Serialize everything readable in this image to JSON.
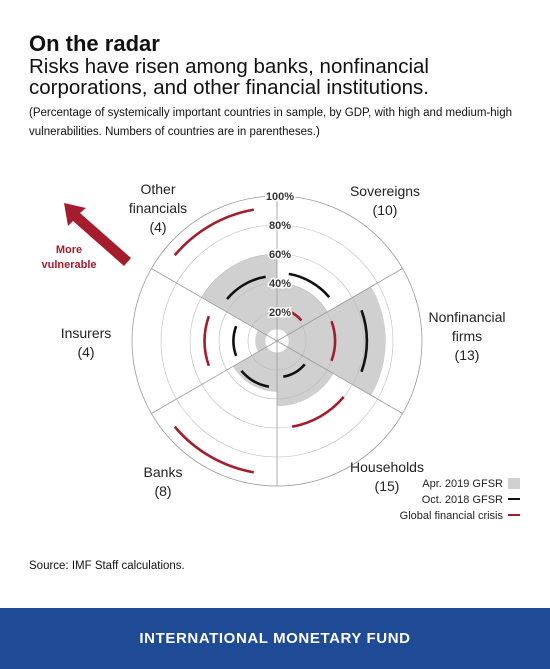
{
  "header": {
    "title": "On the radar",
    "subtitle": "Risks have risen among banks, nonfinancial corporations, and other financial institutions.",
    "note": "(Percentage of systemically important countries in sample, by GDP, with high and medium-high vulnerabilities. Numbers of countries are in parentheses.)"
  },
  "source": "Source: IMF Staff calculations.",
  "footer": {
    "org": "INTERNATIONAL MONETARY FUND"
  },
  "arrow": {
    "label_line1": "More",
    "label_line2": "vulnerable"
  },
  "colors": {
    "gray": "#d0d0d0",
    "black": "#111111",
    "red": "#a51d2d",
    "grid": "#999999",
    "footer": "#1f4a96"
  },
  "chart_data": {
    "type": "radar",
    "ticks": [
      "20%",
      "40%",
      "60%",
      "80%",
      "100%"
    ],
    "rlim": [
      0,
      100
    ],
    "categories": [
      {
        "line1": "Sovereigns",
        "line2": "(10)"
      },
      {
        "line1": "Nonfinancial",
        "line2": "firms",
        "line3": "(13)"
      },
      {
        "line1": "Households",
        "line2": "(15)"
      },
      {
        "line1": "Banks",
        "line2": "(8)"
      },
      {
        "line1": "Insurers",
        "line2": "(4)"
      },
      {
        "line1": "Other",
        "line2": "financials",
        "line3": "(4)"
      }
    ],
    "series": [
      {
        "name": "Apr. 2019 GFSR",
        "style": "fill",
        "values": [
          40,
          75,
          45,
          35,
          15,
          60
        ]
      },
      {
        "name": "Oct. 2018 GFSR",
        "style": "arc",
        "values": [
          47,
          62,
          25,
          32,
          30,
          45
        ]
      },
      {
        "name": "Global financial crisis",
        "style": "arc",
        "values": [
          22,
          40,
          60,
          92,
          50,
          92
        ]
      }
    ],
    "legend_position": "bottom-right"
  }
}
